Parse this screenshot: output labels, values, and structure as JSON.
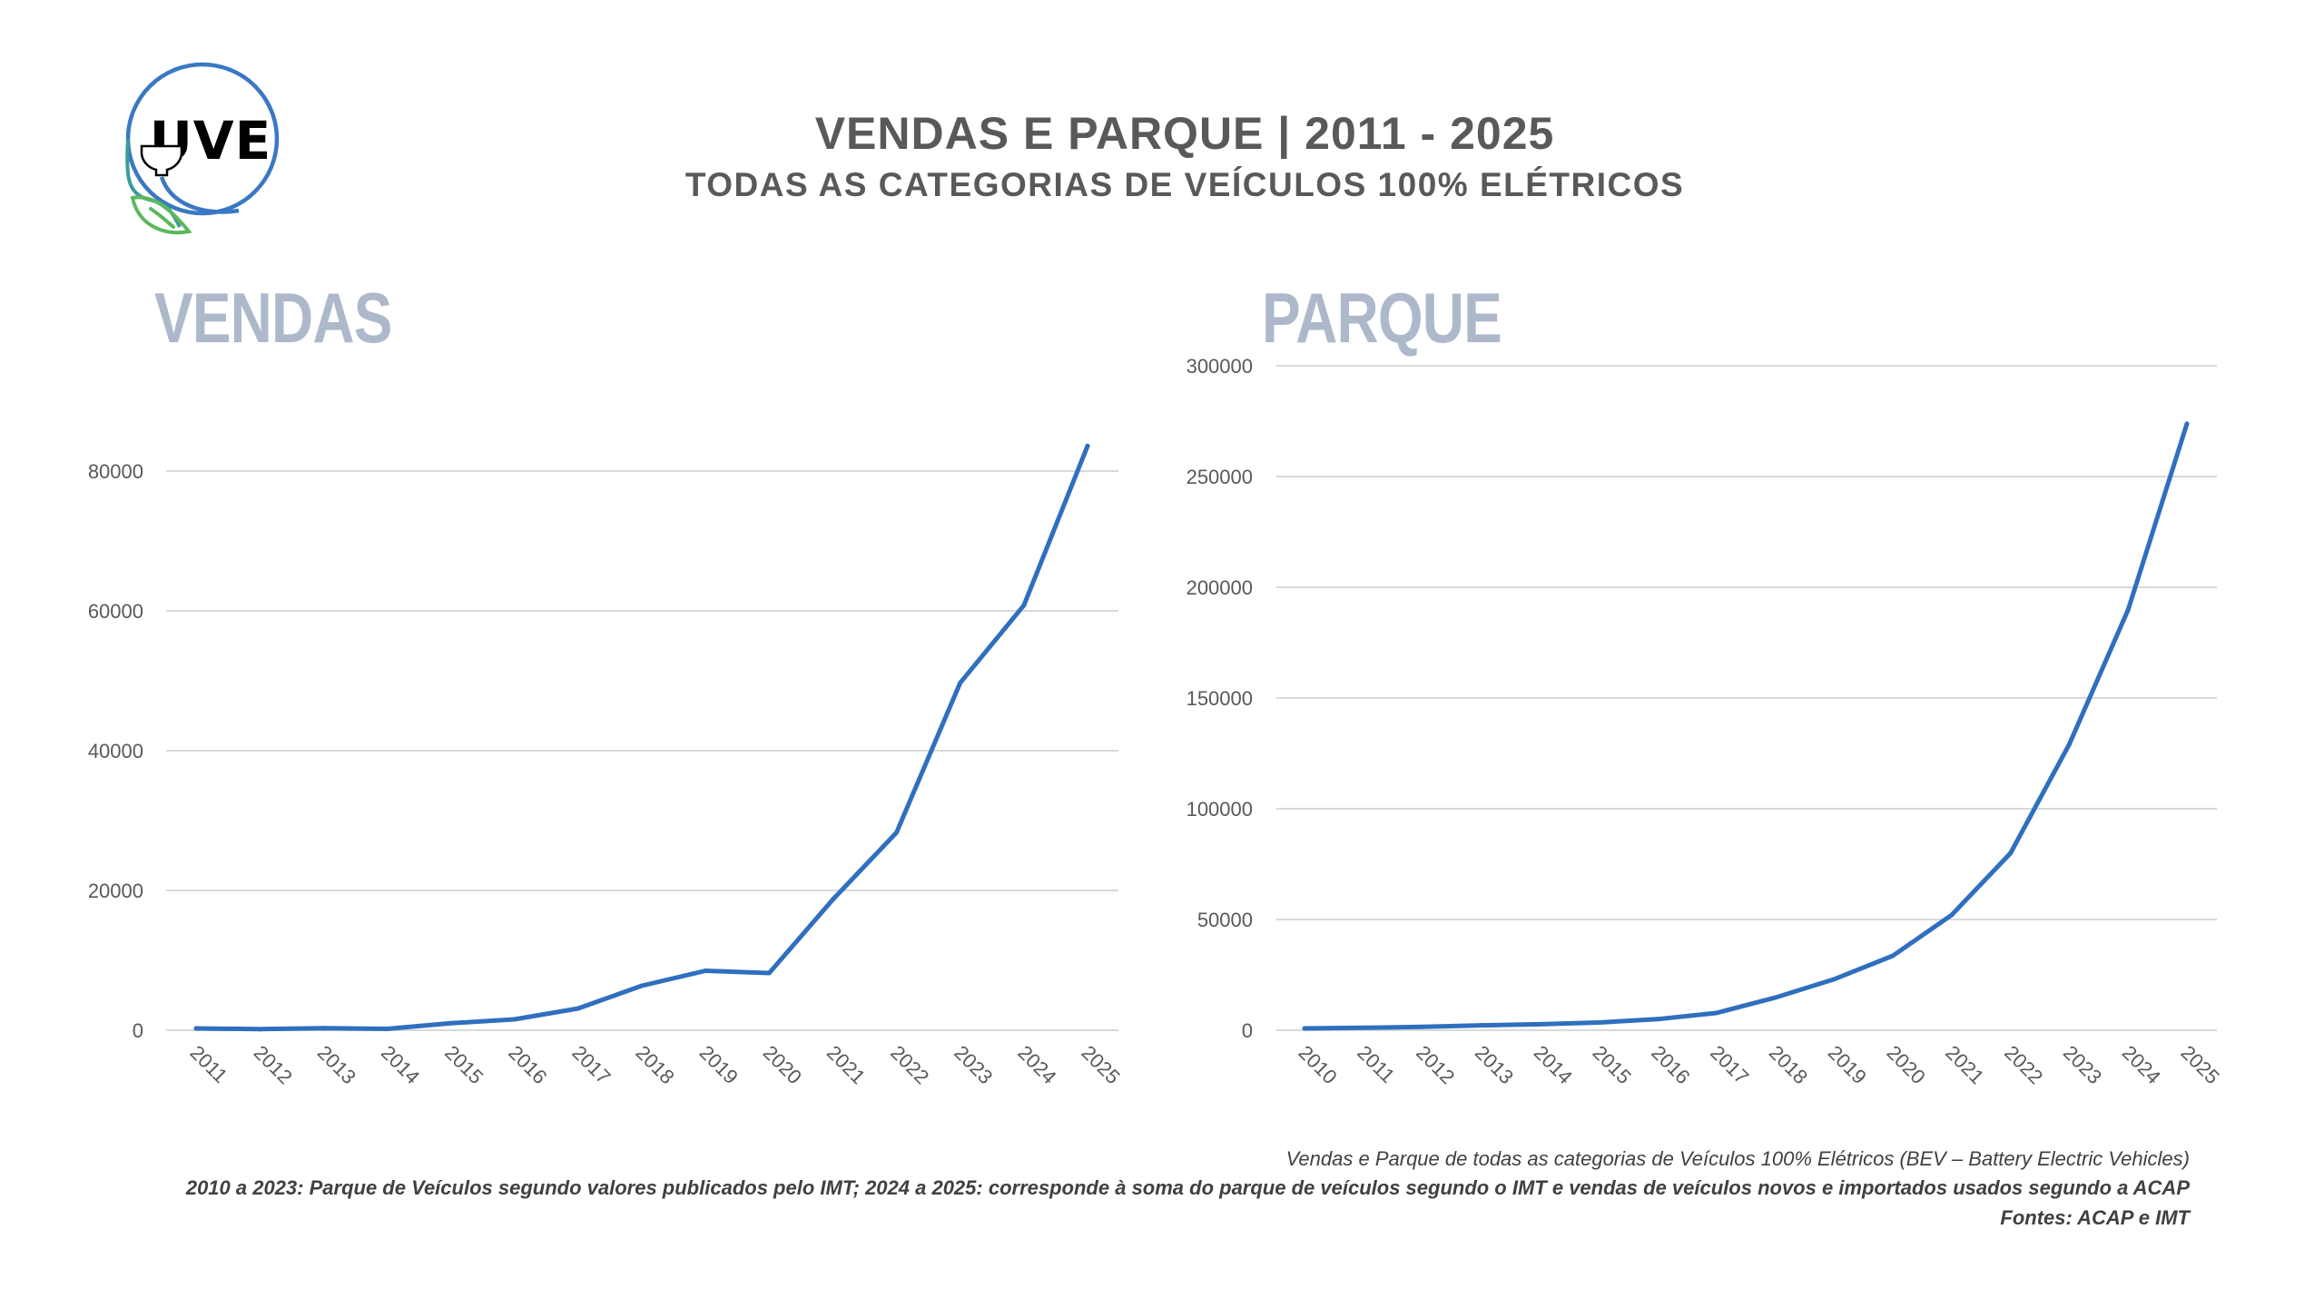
{
  "header": {
    "logo_text": "UVE",
    "title": "VENDAS E PARQUE | 2011 - 2025",
    "subtitle": "TODAS AS CATEGORIAS DE VEÍCULOS 100% ELÉTRICOS"
  },
  "panels": {
    "vendas_heading": "VENDAS",
    "parque_heading": "PARQUE"
  },
  "colors": {
    "series": "#2f6fbf",
    "heading": "#adb9ca",
    "text": "#595959",
    "grid": "#d9d9d9",
    "logo_ring": "#3a78c3",
    "logo_leaf": "#5cb85c"
  },
  "chart_data": [
    {
      "id": "vendas",
      "type": "line",
      "title": "VENDAS",
      "xlabel": "",
      "ylabel": "",
      "categories": [
        "2011",
        "2012",
        "2013",
        "2014",
        "2015",
        "2016",
        "2017",
        "2018",
        "2019",
        "2020",
        "2021",
        "2022",
        "2023",
        "2024",
        "2025"
      ],
      "series": [
        {
          "name": "Vendas",
          "values": [
            260,
            150,
            300,
            200,
            1000,
            1560,
            3120,
            6360,
            8500,
            8180,
            18700,
            28300,
            49700,
            60800,
            83600
          ]
        }
      ],
      "ylim": [
        0,
        80000
      ],
      "yticks": [
        0,
        20000,
        40000,
        60000,
        80000
      ],
      "ytick_labels": [
        "0",
        "20000",
        "40000",
        "60000",
        "80000"
      ],
      "grid": true,
      "legend": "none",
      "xtick_rotation": 45
    },
    {
      "id": "parque",
      "type": "line",
      "title": "PARQUE",
      "xlabel": "",
      "ylabel": "",
      "categories": [
        "2010",
        "2011",
        "2012",
        "2013",
        "2014",
        "2015",
        "2016",
        "2017",
        "2018",
        "2019",
        "2020",
        "2021",
        "2022",
        "2023",
        "2024",
        "2025"
      ],
      "series": [
        {
          "name": "Parque",
          "values": [
            800,
            1100,
            1500,
            2200,
            2700,
            3500,
            5000,
            7800,
            14700,
            23000,
            33600,
            52000,
            79900,
            129100,
            189800,
            273800
          ]
        }
      ],
      "ylim": [
        0,
        300000
      ],
      "yticks": [
        0,
        50000,
        100000,
        150000,
        200000,
        250000,
        300000
      ],
      "ytick_labels": [
        "0",
        "50000",
        "100000",
        "150000",
        "200000",
        "250000",
        "300000"
      ],
      "grid": true,
      "legend": "none",
      "xtick_rotation": 45
    }
  ],
  "footer": {
    "line1": "Vendas e Parque de todas as categorias de Veículos 100% Elétricos (BEV – Battery Electric Vehicles)",
    "line2": "2010 a 2023: Parque de Veículos segundo valores publicados pelo IMT; 2024 a 2025: corresponde à soma do parque de veículos segundo o IMT e vendas de veículos novos e importados usados segundo a ACAP",
    "line3": "Fontes: ACAP e IMT"
  }
}
